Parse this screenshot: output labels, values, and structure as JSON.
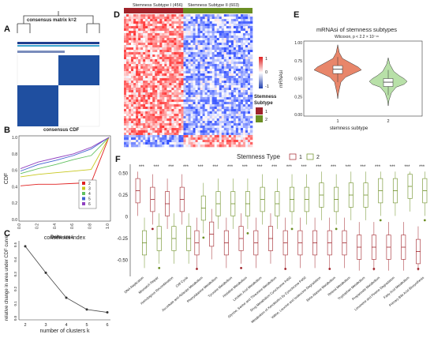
{
  "panels": {
    "A": {
      "letter": "A",
      "title": "consensus matrix k=2"
    },
    "B": {
      "letter": "B",
      "title": "consensus CDF",
      "ylabel": "CDF",
      "xlabel": "consensus index",
      "xticks": [
        "0.0",
        "0.2",
        "0.4",
        "0.6",
        "0.8",
        "1.0"
      ],
      "yticks": [
        "0.0",
        "0.2",
        "0.4",
        "0.6",
        "0.8",
        "1.0"
      ],
      "legend": [
        "2",
        "3",
        "4",
        "5",
        "6"
      ]
    },
    "C": {
      "letter": "C",
      "title": "Delta area",
      "ylabel": "relative change in area under CDF curve",
      "xlabel": "number of clusters k",
      "xticks": [
        "2",
        "3",
        "4",
        "5",
        "6"
      ],
      "yticks": [
        "0.0",
        "0.1",
        "0.2",
        "0.3",
        "0.4",
        "0.5"
      ]
    },
    "D": {
      "letter": "D",
      "group1": "Stemness Subtype I (456)",
      "group2": "Stemness Subtype II (603)",
      "scale_max": "1",
      "scale_mid": "0",
      "scale_min": "-1",
      "legend_title": "Stemness Subtype",
      "legend_items": [
        "1",
        "2"
      ]
    },
    "E": {
      "letter": "E",
      "title": "mRNAsi of stemness subtypes",
      "subtitle": "Wilcoxon, p < 2.2 × 10⁻¹⁶",
      "ylabel": "mRNAsi",
      "xlabel": "stemness subtype",
      "xticks": [
        "1",
        "2"
      ],
      "yticks": [
        "0.00",
        "0.25",
        "0.50",
        "0.75",
        "1.00"
      ]
    },
    "F": {
      "letter": "F",
      "legend_title": "Stemness Type",
      "legend_items": [
        "1",
        "2"
      ],
      "sig": "***",
      "yticks": [
        "0.50",
        "0.25",
        "0",
        "-0.25",
        "-0.50"
      ]
    }
  },
  "colors": {
    "subtype1": "#a0232a",
    "subtype2": "#6b8e23",
    "red": "#e03030",
    "blue": "#2244aa",
    "violet1": "#e8866a",
    "violet2": "#b8e0a8"
  },
  "chart_data": [
    {
      "type": "line",
      "panel": "C",
      "title": "Delta area",
      "x": [
        2,
        3,
        4,
        5,
        6
      ],
      "values": [
        0.49,
        0.31,
        0.14,
        0.06,
        0.04
      ],
      "xlabel": "number of clusters k",
      "ylabel": "relative change in area under CDF curve"
    },
    {
      "type": "line",
      "panel": "B",
      "title": "consensus CDF",
      "x": [
        0.0,
        0.2,
        0.4,
        0.6,
        0.8,
        1.0
      ],
      "series": [
        {
          "name": "2",
          "values": [
            0.41,
            0.43,
            0.43,
            0.44,
            0.45,
            1.0
          ]
        },
        {
          "name": "3",
          "values": [
            0.52,
            0.55,
            0.57,
            0.59,
            0.61,
            1.0
          ]
        },
        {
          "name": "4",
          "values": [
            0.56,
            0.62,
            0.67,
            0.73,
            0.78,
            1.0
          ]
        },
        {
          "name": "5",
          "values": [
            0.59,
            0.67,
            0.72,
            0.78,
            0.86,
            1.0
          ]
        },
        {
          "name": "6",
          "values": [
            0.62,
            0.7,
            0.75,
            0.8,
            0.88,
            1.0
          ]
        }
      ],
      "ylim": [
        0,
        1
      ]
    },
    {
      "type": "violin",
      "panel": "E",
      "categories": [
        "1",
        "2"
      ],
      "medians": [
        0.63,
        0.45
      ],
      "q1": [
        0.57,
        0.39
      ],
      "q3": [
        0.68,
        0.5
      ],
      "ylim": [
        0,
        1
      ]
    },
    {
      "type": "boxplot",
      "panel": "F",
      "categories": [
        "DNA Replication",
        "Mismatch Repair",
        "Homologous Recombination",
        "Cell Cycle",
        "Ascorbate and Aldarate Metabolism",
        "Phenylalanine Metabolism",
        "Tyrosine Metabolism",
        "Histidine Metabolism",
        "Linoleic Acid Metabolism",
        "Glycine, Serine and Threonine Metabolism",
        "Drug Metabolism Cytochrome P450",
        "Metabolism of Xenobiotics by Cytochrome P450",
        "Valine, Leucine and Isoleucine Degradation",
        "Beta-Alanine Metabolism",
        "Retinol Metabolism",
        "Tryptophan Metabolism",
        "Propanoate Metabolism",
        "Limonene and Pinene Degradation",
        "Fatty Acid Metabolism",
        "Primary Bile Acid Biosynthesis"
      ],
      "series": [
        {
          "name": "1",
          "medians": [
            0.3,
            0.2,
            0.15,
            0.2,
            -0.3,
            -0.2,
            -0.3,
            -0.25,
            -0.3,
            -0.25,
            -0.3,
            -0.3,
            -0.3,
            -0.3,
            -0.3,
            -0.35,
            -0.35,
            -0.35,
            -0.35,
            -0.4
          ]
        },
        {
          "name": "2",
          "medians": [
            -0.3,
            -0.25,
            -0.25,
            -0.25,
            0.1,
            0.15,
            0.15,
            0.15,
            0.2,
            0.15,
            0.2,
            0.2,
            0.25,
            0.2,
            0.25,
            0.25,
            0.3,
            0.3,
            0.35,
            0.3
          ]
        }
      ],
      "ylim": [
        -0.65,
        0.55
      ]
    }
  ]
}
